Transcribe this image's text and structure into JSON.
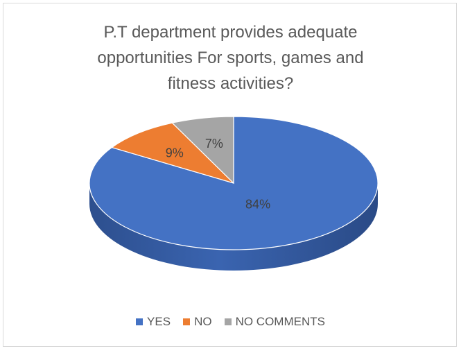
{
  "chart_data": {
    "type": "pie",
    "title_lines": [
      "P.T department provides adequate",
      "opportunities For sports, games and",
      "fitness activities?"
    ],
    "categories": [
      "YES",
      "NO",
      "NO COMMENTS"
    ],
    "values": [
      84,
      9,
      7
    ],
    "data_labels": [
      "84%",
      "9%",
      "7%"
    ],
    "colors": [
      "#4472c4",
      "#ed7d31",
      "#a5a5a5"
    ],
    "legend_position": "bottom",
    "style": "3d-pie"
  }
}
